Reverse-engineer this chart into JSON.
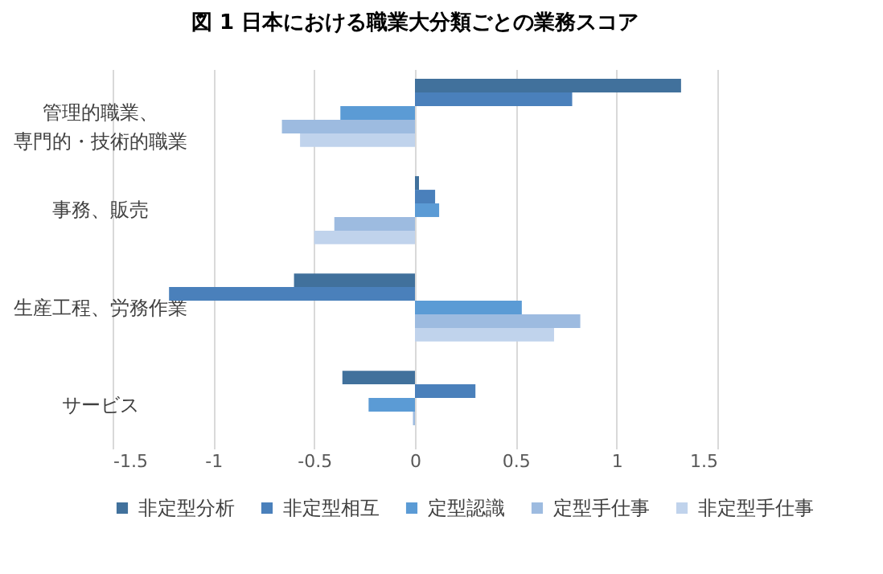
{
  "chart_data": {
    "type": "bar",
    "orientation": "horizontal",
    "title": "図 1  日本における職業大分類ごとの業務スコア",
    "categories": [
      "管理的職業、専門的・技術的職業",
      "事務、販売",
      "生産工程、労務作業",
      "サービス"
    ],
    "series": [
      {
        "name": "非定型分析",
        "color": "#41719c",
        "values": [
          1.32,
          0.02,
          -0.6,
          -0.36
        ]
      },
      {
        "name": "非定型相互",
        "color": "#4a80bb",
        "values": [
          0.78,
          0.1,
          -1.22,
          0.3
        ]
      },
      {
        "name": "定型認識",
        "color": "#5b9bd5",
        "values": [
          -0.37,
          0.12,
          0.53,
          -0.23
        ]
      },
      {
        "name": "定型手仕事",
        "color": "#9dbbe0",
        "values": [
          -0.66,
          -0.4,
          0.82,
          -0.01
        ]
      },
      {
        "name": "非定型手仕事",
        "color": "#c0d3ec",
        "values": [
          -0.57,
          -0.5,
          0.69,
          null
        ]
      }
    ],
    "xlim": [
      -1.5,
      1.5
    ],
    "xticks": [
      -1.5,
      -1,
      -0.5,
      0,
      0.5,
      1,
      1.5
    ],
    "grid": "x",
    "legend": "bottom"
  }
}
